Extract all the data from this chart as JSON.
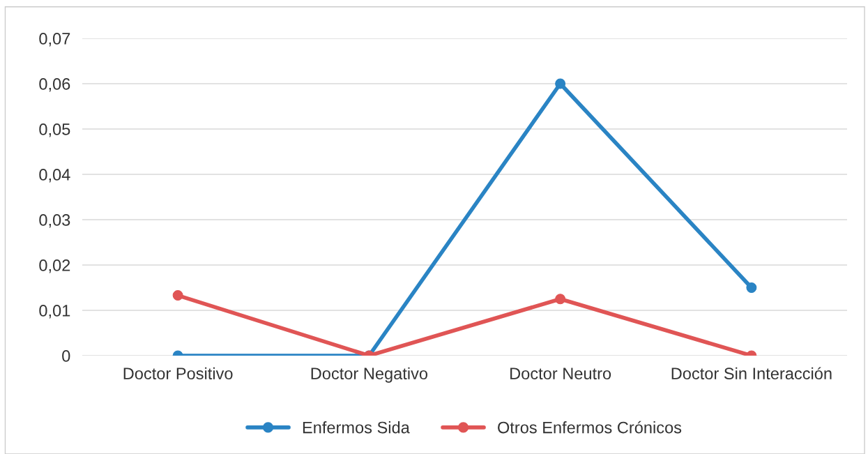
{
  "chart_data": {
    "type": "line",
    "categories": [
      "Doctor Positivo",
      "Doctor Negativo",
      "Doctor Neutro",
      "Doctor Sin Interacción"
    ],
    "series": [
      {
        "name": "Enfermos Sida",
        "color": "#2a84c4",
        "values": [
          0,
          0,
          0.06,
          0.015
        ]
      },
      {
        "name": "Otros Enfermos Crónicos",
        "color": "#e05555",
        "values": [
          0.0133,
          0,
          0.0125,
          0
        ]
      }
    ],
    "ylim": [
      0,
      0.07
    ],
    "yticks": [
      {
        "value": 0,
        "label": "0"
      },
      {
        "value": 0.01,
        "label": "0,01"
      },
      {
        "value": 0.02,
        "label": "0,02"
      },
      {
        "value": 0.03,
        "label": "0,03"
      },
      {
        "value": 0.04,
        "label": "0,04"
      },
      {
        "value": 0.05,
        "label": "0,05"
      },
      {
        "value": 0.06,
        "label": "0,06"
      },
      {
        "value": 0.07,
        "label": "0,07"
      }
    ],
    "grid": "y",
    "legend": "bottom",
    "marker": "circle",
    "line_style": "solid"
  }
}
